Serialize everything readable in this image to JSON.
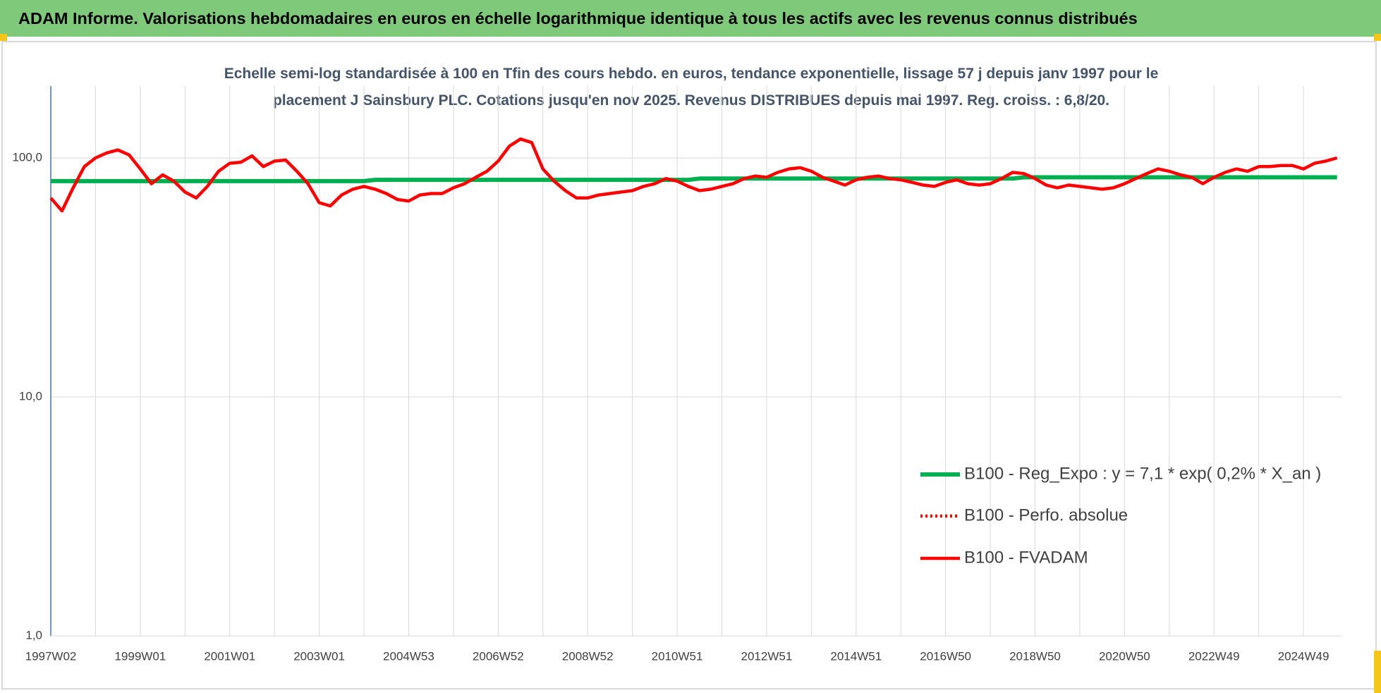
{
  "header": {
    "title": "ADAM Informe. Valorisations hebdomadaires en euros en échelle logarithmique identique à tous les actifs avec les revenus connus distribués"
  },
  "chart_data": {
    "type": "line",
    "title": "Echelle semi-log standardisée à 100 en Tfin des cours hebdo. en euros, tendance exponentielle, lissage 57 j depuis janv 1997 pour le placement J Sainsbury PLC. Cotations jusqu'en nov 2025. Revenus DISTRIBUES depuis mai 1997. Reg. croiss. : 6,8/20.",
    "categories": [
      "1997W02",
      null,
      null,
      null,
      null,
      null,
      null,
      null,
      "1999W01",
      null,
      null,
      null,
      null,
      null,
      null,
      null,
      "2001W01",
      null,
      null,
      null,
      null,
      null,
      null,
      null,
      "2003W01",
      null,
      null,
      null,
      null,
      null,
      null,
      null,
      "2004W53",
      null,
      null,
      null,
      null,
      null,
      null,
      null,
      "2006W52",
      null,
      null,
      null,
      null,
      null,
      null,
      null,
      "2008W52",
      null,
      null,
      null,
      null,
      null,
      null,
      null,
      "2010W51",
      null,
      null,
      null,
      null,
      null,
      null,
      null,
      "2012W51",
      null,
      null,
      null,
      null,
      null,
      null,
      null,
      "2014W51",
      null,
      null,
      null,
      null,
      null,
      null,
      null,
      "2016W50",
      null,
      null,
      null,
      null,
      null,
      null,
      null,
      "2018W50",
      null,
      null,
      null,
      null,
      null,
      null,
      null,
      "2020W50",
      null,
      null,
      null,
      null,
      null,
      null,
      null,
      "2022W49",
      null,
      null,
      null,
      null,
      null,
      null,
      null,
      "2024W49",
      null,
      null,
      null
    ],
    "series": [
      {
        "name": "B100 - Reg_Expo : y = 7,1 * exp( 0,2% *  X_an )",
        "color": "#00b050",
        "values": [
          80,
          80,
          80,
          80,
          80,
          80,
          80,
          80,
          80,
          80,
          80,
          80,
          80,
          80,
          80,
          80,
          80,
          80,
          80,
          80,
          80,
          80,
          80,
          80,
          80,
          80,
          80,
          80,
          80,
          81,
          81,
          81,
          81,
          81,
          81,
          81,
          81,
          81,
          81,
          81,
          81,
          81,
          81,
          81,
          81,
          81,
          81,
          81,
          81,
          81,
          81,
          81,
          81,
          81,
          81,
          81,
          81,
          81,
          82,
          82,
          82,
          82,
          82,
          82,
          82,
          82,
          82,
          82,
          82,
          82,
          82,
          82,
          82,
          82,
          82,
          82,
          82,
          82,
          82,
          82,
          82,
          82,
          82,
          82,
          82,
          82,
          82,
          83,
          83,
          83,
          83,
          83,
          83,
          83,
          83,
          83,
          83,
          83,
          83,
          83,
          83,
          83,
          83,
          83,
          83,
          83,
          83,
          83,
          83,
          83,
          83,
          83,
          83,
          83,
          83,
          83
        ]
      },
      {
        "name": "B100 - Perfo. absolue",
        "color": "#ff0000",
        "dash": "dotted"
      },
      {
        "name": "B100 - FVADAM",
        "color": "#ff0000",
        "values": [
          68,
          60,
          75,
          92,
          100,
          105,
          108,
          103,
          90,
          78,
          85,
          80,
          72,
          68,
          76,
          88,
          95,
          96,
          102,
          92,
          97,
          98,
          88,
          78,
          65,
          63,
          70,
          74,
          76,
          74,
          71,
          67,
          66,
          70,
          71,
          71,
          75,
          78,
          83,
          88,
          97,
          112,
          120,
          116,
          90,
          80,
          73,
          68,
          68,
          70,
          71,
          72,
          73,
          76,
          78,
          82,
          80,
          76,
          73,
          74,
          76,
          78,
          82,
          84,
          83,
          87,
          90,
          91,
          88,
          83,
          80,
          77,
          81,
          83,
          84,
          82,
          81,
          79,
          77,
          76,
          79,
          81,
          78,
          77,
          78,
          82,
          87,
          86,
          82,
          77,
          75,
          77,
          76,
          75,
          74,
          75,
          78,
          82,
          86,
          90,
          88,
          85,
          83,
          78,
          83,
          87,
          90,
          88,
          92,
          92,
          93,
          93,
          90,
          95,
          97,
          100
        ]
      }
    ],
    "log_scale": true,
    "ylim": [
      1,
      200
    ],
    "yticks": [
      {
        "value": 1,
        "label": "1,0"
      },
      {
        "value": 10,
        "label": "10,0"
      },
      {
        "value": 100,
        "label": "100,0"
      }
    ],
    "grid": true,
    "legend": "right"
  }
}
